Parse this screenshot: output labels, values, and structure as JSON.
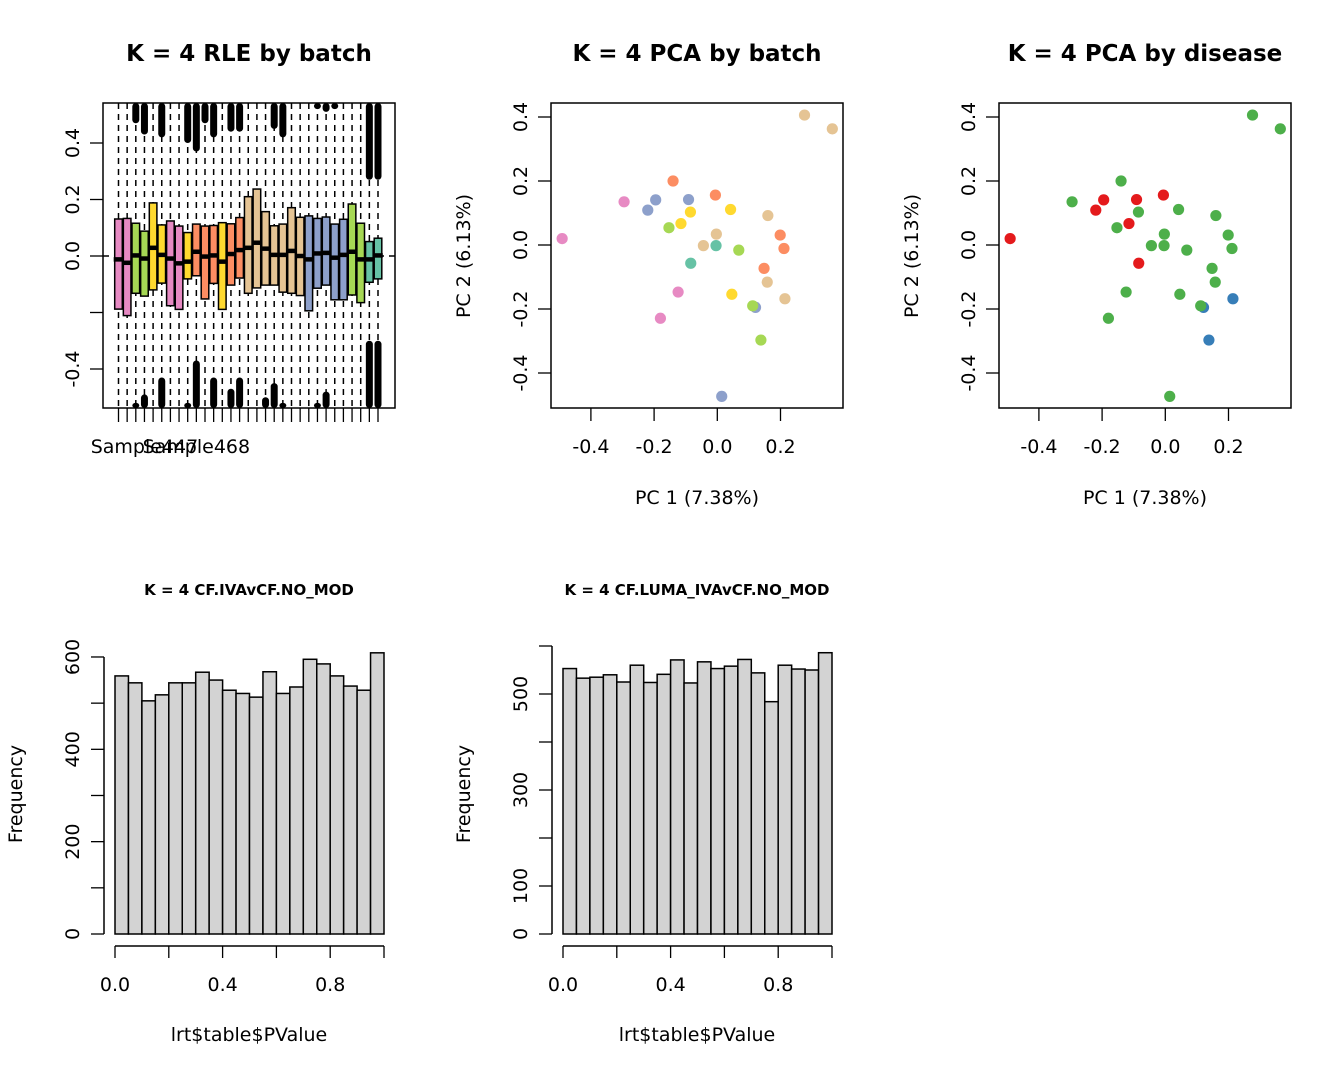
{
  "chart_data": [
    {
      "id": "rle",
      "type": "boxplot",
      "title": "K = 4 RLE by batch",
      "xlabel": "",
      "ylabel": "",
      "ylim": [
        -0.54,
        0.54
      ],
      "yticks": [
        -0.4,
        -0.2,
        0.0,
        0.2,
        0.4
      ],
      "ytick_labels": [
        "-0.4",
        "",
        "0.0",
        "0.2",
        "0.4"
      ],
      "xtick_labels": [
        "Sample447",
        "Sample468"
      ],
      "xtick_label_positions": [
        3,
        9
      ],
      "reference_line": 0.0,
      "batch_colors": {
        "pink": "#E78AC3",
        "green": "#A6D854",
        "yellow": "#FFD92F",
        "orange": "#FC8D62",
        "tan": "#E5C494",
        "blue": "#8DA0CB",
        "teal": "#66C2A5"
      },
      "boxes": [
        {
          "batch": "pink",
          "q1": -0.188,
          "median": -0.012,
          "q3": 0.131,
          "upper_outlier_from": null,
          "lower_outlier_from": null
        },
        {
          "batch": "pink",
          "q1": -0.211,
          "median": -0.024,
          "q3": 0.133,
          "upper_outlier_from": null,
          "lower_outlier_from": null
        },
        {
          "batch": "green",
          "q1": -0.132,
          "median": 0.002,
          "q3": 0.116,
          "upper_outlier_from": 0.47,
          "lower_outlier_from": -0.52
        },
        {
          "batch": "green",
          "q1": -0.142,
          "median": -0.009,
          "q3": 0.088,
          "upper_outlier_from": 0.43,
          "lower_outlier_from": -0.49
        },
        {
          "batch": "yellow",
          "q1": -0.12,
          "median": 0.029,
          "q3": 0.188,
          "upper_outlier_from": null,
          "lower_outlier_from": null
        },
        {
          "batch": "yellow",
          "q1": -0.096,
          "median": 0.004,
          "q3": 0.11,
          "upper_outlier_from": 0.42,
          "lower_outlier_from": -0.43
        },
        {
          "batch": "pink",
          "q1": -0.176,
          "median": -0.009,
          "q3": 0.124,
          "upper_outlier_from": null,
          "lower_outlier_from": null
        },
        {
          "batch": "pink",
          "q1": -0.189,
          "median": -0.026,
          "q3": 0.106,
          "upper_outlier_from": null,
          "lower_outlier_from": null
        },
        {
          "batch": "yellow",
          "q1": -0.081,
          "median": -0.02,
          "q3": 0.083,
          "upper_outlier_from": 0.4,
          "lower_outlier_from": -0.52
        },
        {
          "batch": "orange",
          "q1": -0.07,
          "median": 0.015,
          "q3": 0.113,
          "upper_outlier_from": 0.37,
          "lower_outlier_from": -0.37
        },
        {
          "batch": "orange",
          "q1": -0.152,
          "median": -0.002,
          "q3": 0.106,
          "upper_outlier_from": 0.47,
          "lower_outlier_from": null
        },
        {
          "batch": "orange",
          "q1": -0.097,
          "median": 0.002,
          "q3": 0.108,
          "upper_outlier_from": 0.42,
          "lower_outlier_from": -0.43
        },
        {
          "batch": "yellow",
          "q1": -0.189,
          "median": -0.02,
          "q3": 0.118,
          "upper_outlier_from": null,
          "lower_outlier_from": null
        },
        {
          "batch": "orange",
          "q1": -0.103,
          "median": 0.007,
          "q3": 0.114,
          "upper_outlier_from": 0.44,
          "lower_outlier_from": -0.47
        },
        {
          "batch": "orange",
          "q1": -0.078,
          "median": 0.021,
          "q3": 0.136,
          "upper_outlier_from": 0.44,
          "lower_outlier_from": -0.43
        },
        {
          "batch": "tan",
          "q1": -0.132,
          "median": 0.029,
          "q3": 0.21,
          "upper_outlier_from": null,
          "lower_outlier_from": null
        },
        {
          "batch": "tan",
          "q1": -0.113,
          "median": 0.047,
          "q3": 0.237,
          "upper_outlier_from": null,
          "lower_outlier_from": null
        },
        {
          "batch": "tan",
          "q1": -0.103,
          "median": 0.026,
          "q3": 0.157,
          "upper_outlier_from": null,
          "lower_outlier_from": -0.5
        },
        {
          "batch": "tan",
          "q1": -0.103,
          "median": 0.004,
          "q3": 0.107,
          "upper_outlier_from": 0.45,
          "lower_outlier_from": -0.45
        },
        {
          "batch": "tan",
          "q1": -0.128,
          "median": 0.004,
          "q3": 0.113,
          "upper_outlier_from": 0.42,
          "lower_outlier_from": -0.52
        },
        {
          "batch": "tan",
          "q1": -0.132,
          "median": 0.018,
          "q3": 0.171,
          "upper_outlier_from": null,
          "lower_outlier_from": null
        },
        {
          "batch": "tan",
          "q1": -0.14,
          "median": 0.0,
          "q3": 0.137,
          "upper_outlier_from": null,
          "lower_outlier_from": null
        },
        {
          "batch": "blue",
          "q1": -0.194,
          "median": -0.012,
          "q3": 0.142,
          "upper_outlier_from": null,
          "lower_outlier_from": null
        },
        {
          "batch": "blue",
          "q1": -0.114,
          "median": 0.009,
          "q3": 0.133,
          "upper_outlier_from": 0.52,
          "lower_outlier_from": -0.52
        },
        {
          "batch": "blue",
          "q1": -0.103,
          "median": 0.011,
          "q3": 0.138,
          "upper_outlier_from": 0.51,
          "lower_outlier_from": -0.48
        },
        {
          "batch": "blue",
          "q1": -0.155,
          "median": -0.006,
          "q3": 0.113,
          "upper_outlier_from": 0.52,
          "lower_outlier_from": null
        },
        {
          "batch": "blue",
          "q1": -0.155,
          "median": 0.004,
          "q3": 0.13,
          "upper_outlier_from": null,
          "lower_outlier_from": null
        },
        {
          "batch": "green",
          "q1": -0.138,
          "median": 0.015,
          "q3": 0.184,
          "upper_outlier_from": null,
          "lower_outlier_from": null
        },
        {
          "batch": "green",
          "q1": -0.165,
          "median": -0.012,
          "q3": 0.116,
          "upper_outlier_from": null,
          "lower_outlier_from": null
        },
        {
          "batch": "teal",
          "q1": -0.093,
          "median": -0.012,
          "q3": 0.051,
          "upper_outlier_from": 0.27,
          "lower_outlier_from": -0.3
        },
        {
          "batch": "teal",
          "q1": -0.081,
          "median": 0.002,
          "q3": 0.063,
          "upper_outlier_from": 0.27,
          "lower_outlier_from": -0.3
        }
      ]
    },
    {
      "id": "pca-batch",
      "type": "scatter",
      "title": "K = 4 PCA by batch",
      "xlabel": "PC 1 (7.38%)",
      "ylabel": "PC 2 (6.13%)",
      "xlim": [
        -0.53,
        0.4
      ],
      "ylim": [
        -0.51,
        0.44
      ],
      "xticks": [
        -0.4,
        -0.2,
        0.0,
        0.2
      ],
      "yticks": [
        -0.4,
        -0.2,
        0.0,
        0.2,
        0.4
      ],
      "color_by": "batch"
    },
    {
      "id": "pca-disease",
      "type": "scatter",
      "title": "K = 4 PCA by disease",
      "xlabel": "PC 1 (7.38%)",
      "ylabel": "PC 2 (6.13%)",
      "xlim": [
        -0.53,
        0.4
      ],
      "ylim": [
        -0.51,
        0.44
      ],
      "xticks": [
        -0.4,
        -0.2,
        0.0,
        0.2
      ],
      "yticks": [
        -0.4,
        -0.2,
        0.0,
        0.2,
        0.4
      ],
      "color_by": "disease",
      "disease_colors": {
        "red": "#E41A1C",
        "blue": "#377EB8",
        "green": "#4DAF4A"
      }
    },
    {
      "id": "hist-iva",
      "type": "bar",
      "title": "K = 4 CF.IVAvCF.NO_MOD",
      "xlabel": "lrt$table$PValue",
      "ylabel": "Frequency",
      "xlim": [
        0,
        1
      ],
      "ylim": [
        0,
        609
      ],
      "xticks": [
        0.0,
        0.2,
        0.4,
        0.6,
        0.8,
        1.0
      ],
      "xtick_labels": [
        "0.0",
        "",
        "0.4",
        "",
        "0.8",
        ""
      ],
      "yticks": [
        0,
        100,
        200,
        300,
        400,
        500,
        600
      ],
      "ytick_labels": [
        "0",
        "",
        "200",
        "",
        "400",
        "",
        "600"
      ],
      "bin_width": 0.05,
      "values": [
        559,
        544,
        505,
        518,
        544,
        544,
        567,
        550,
        528,
        521,
        513,
        568,
        521,
        535,
        595,
        585,
        559,
        537,
        528,
        609
      ]
    },
    {
      "id": "hist-luma",
      "type": "bar",
      "title": "K = 4 CF.LUMA_IVAvCF.NO_MOD",
      "xlabel": "lrt$table$PValue",
      "ylabel": "Frequency",
      "xlim": [
        0,
        1
      ],
      "ylim": [
        0,
        600
      ],
      "xticks": [
        0.0,
        0.2,
        0.4,
        0.6,
        0.8,
        1.0
      ],
      "xtick_labels": [
        "0.0",
        "",
        "0.4",
        "",
        "0.8",
        ""
      ],
      "yticks": [
        0,
        100,
        200,
        300,
        400,
        500,
        600
      ],
      "ytick_labels": [
        "0",
        "100",
        "",
        "300",
        "",
        "500",
        ""
      ],
      "bin_width": 0.05,
      "values": [
        553,
        533,
        535,
        540,
        525,
        560,
        524,
        541,
        571,
        523,
        567,
        553,
        558,
        572,
        544,
        484,
        560,
        552,
        550,
        586
      ]
    }
  ],
  "pca_points": [
    {
      "pc1": 0.276,
      "pc2": 0.406,
      "batch": "tan",
      "disease": "green"
    },
    {
      "pc1": 0.364,
      "pc2": 0.363,
      "batch": "tan",
      "disease": "green"
    },
    {
      "pc1": -0.14,
      "pc2": 0.2,
      "batch": "orange",
      "disease": "green"
    },
    {
      "pc1": -0.295,
      "pc2": 0.135,
      "batch": "pink",
      "disease": "green"
    },
    {
      "pc1": -0.195,
      "pc2": 0.141,
      "batch": "blue",
      "disease": "red"
    },
    {
      "pc1": -0.22,
      "pc2": 0.109,
      "batch": "blue",
      "disease": "red"
    },
    {
      "pc1": -0.091,
      "pc2": 0.142,
      "batch": "blue",
      "disease": "red"
    },
    {
      "pc1": -0.006,
      "pc2": 0.156,
      "batch": "orange",
      "disease": "red"
    },
    {
      "pc1": -0.085,
      "pc2": 0.103,
      "batch": "yellow",
      "disease": "green"
    },
    {
      "pc1": 0.042,
      "pc2": 0.111,
      "batch": "yellow",
      "disease": "green"
    },
    {
      "pc1": 0.16,
      "pc2": 0.092,
      "batch": "tan",
      "disease": "green"
    },
    {
      "pc1": -0.115,
      "pc2": 0.067,
      "batch": "yellow",
      "disease": "red"
    },
    {
      "pc1": -0.153,
      "pc2": 0.054,
      "batch": "green",
      "disease": "green"
    },
    {
      "pc1": -0.491,
      "pc2": 0.02,
      "batch": "pink",
      "disease": "red"
    },
    {
      "pc1": 0.199,
      "pc2": 0.031,
      "batch": "orange",
      "disease": "green"
    },
    {
      "pc1": -0.003,
      "pc2": 0.034,
      "batch": "tan",
      "disease": "green"
    },
    {
      "pc1": -0.044,
      "pc2": -0.002,
      "batch": "tan",
      "disease": "green"
    },
    {
      "pc1": -0.004,
      "pc2": -0.002,
      "batch": "teal",
      "disease": "green"
    },
    {
      "pc1": 0.068,
      "pc2": -0.016,
      "batch": "green",
      "disease": "green"
    },
    {
      "pc1": 0.211,
      "pc2": -0.011,
      "batch": "orange",
      "disease": "green"
    },
    {
      "pc1": -0.084,
      "pc2": -0.057,
      "batch": "teal",
      "disease": "red"
    },
    {
      "pc1": 0.148,
      "pc2": -0.073,
      "batch": "orange",
      "disease": "green"
    },
    {
      "pc1": 0.158,
      "pc2": -0.116,
      "batch": "tan",
      "disease": "green"
    },
    {
      "pc1": -0.124,
      "pc2": -0.147,
      "batch": "pink",
      "disease": "green"
    },
    {
      "pc1": 0.046,
      "pc2": -0.154,
      "batch": "yellow",
      "disease": "green"
    },
    {
      "pc1": 0.214,
      "pc2": -0.168,
      "batch": "tan",
      "disease": "blue"
    },
    {
      "pc1": 0.121,
      "pc2": -0.195,
      "batch": "blue",
      "disease": "blue"
    },
    {
      "pc1": 0.112,
      "pc2": -0.19,
      "batch": "green",
      "disease": "green"
    },
    {
      "pc1": -0.18,
      "pc2": -0.229,
      "batch": "pink",
      "disease": "green"
    },
    {
      "pc1": 0.138,
      "pc2": -0.297,
      "batch": "green",
      "disease": "blue"
    },
    {
      "pc1": 0.014,
      "pc2": -0.473,
      "batch": "blue",
      "disease": "green"
    }
  ]
}
